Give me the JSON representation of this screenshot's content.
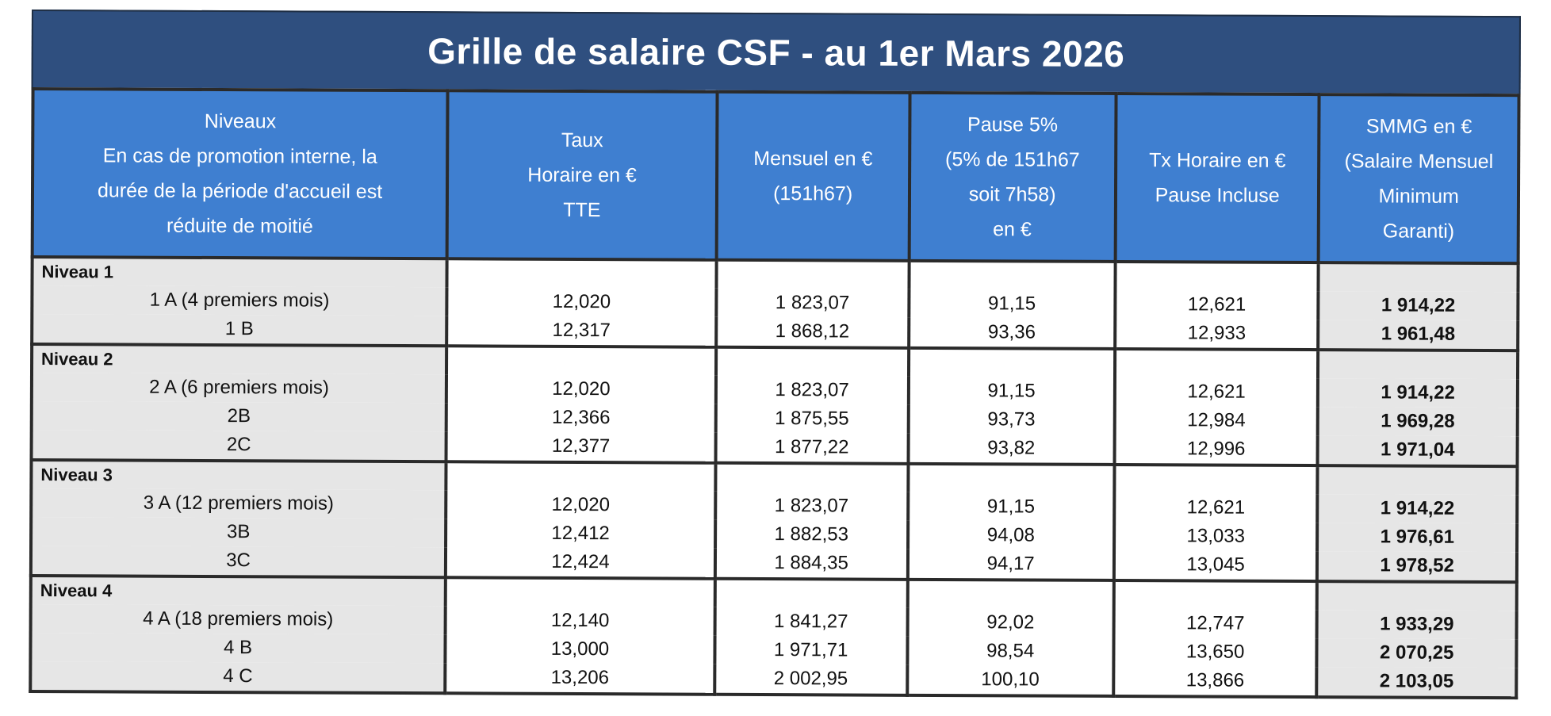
{
  "title": "Grille de salaire CSF - au 1er Mars 2026",
  "columns": [
    {
      "lines": [
        "Niveaux",
        "En cas de promotion interne, la",
        "durée de la période d'accueil est",
        "réduite de moitié"
      ]
    },
    {
      "lines": [
        "Taux",
        "Horaire en €",
        "TTE"
      ]
    },
    {
      "lines": [
        "Mensuel en €",
        "(151h67)"
      ]
    },
    {
      "lines": [
        "Pause 5%",
        "(5% de 151h67",
        "soit 7h58)",
        "en €"
      ]
    },
    {
      "lines": [
        "Tx Horaire en €",
        "Pause Incluse"
      ]
    },
    {
      "lines": [
        "SMMG en €",
        "(Salaire Mensuel",
        "Minimum",
        "Garanti)"
      ]
    }
  ],
  "groups": [
    {
      "name": "Niveau 1",
      "rows": [
        {
          "label": "1 A (4 premiers mois)",
          "taux": "12,020",
          "mensuel": "1 823,07",
          "pause": "91,15",
          "tx_pause": "12,621",
          "smmg": "1 914,22"
        },
        {
          "label": "1 B",
          "taux": "12,317",
          "mensuel": "1 868,12",
          "pause": "93,36",
          "tx_pause": "12,933",
          "smmg": "1 961,48"
        }
      ]
    },
    {
      "name": "Niveau 2",
      "rows": [
        {
          "label": "2 A (6 premiers mois)",
          "taux": "12,020",
          "mensuel": "1 823,07",
          "pause": "91,15",
          "tx_pause": "12,621",
          "smmg": "1 914,22"
        },
        {
          "label": "2B",
          "taux": "12,366",
          "mensuel": "1 875,55",
          "pause": "93,73",
          "tx_pause": "12,984",
          "smmg": "1 969,28"
        },
        {
          "label": "2C",
          "taux": "12,377",
          "mensuel": "1 877,22",
          "pause": "93,82",
          "tx_pause": "12,996",
          "smmg": "1 971,04"
        }
      ]
    },
    {
      "name": "Niveau 3",
      "rows": [
        {
          "label": "3 A (12 premiers mois)",
          "taux": "12,020",
          "mensuel": "1 823,07",
          "pause": "91,15",
          "tx_pause": "12,621",
          "smmg": "1 914,22"
        },
        {
          "label": "3B",
          "taux": "12,412",
          "mensuel": "1 882,53",
          "pause": "94,08",
          "tx_pause": "13,033",
          "smmg": "1 976,61"
        },
        {
          "label": "3C",
          "taux": "12,424",
          "mensuel": "1 884,35",
          "pause": "94,17",
          "tx_pause": "13,045",
          "smmg": "1 978,52"
        }
      ]
    },
    {
      "name": "Niveau 4",
      "rows": [
        {
          "label": "4 A (18 premiers mois)",
          "taux": "12,140",
          "mensuel": "1 841,27",
          "pause": "92,02",
          "tx_pause": "12,747",
          "smmg": "1 933,29"
        },
        {
          "label": "4 B",
          "taux": "13,000",
          "mensuel": "1 971,71",
          "pause": "98,54",
          "tx_pause": "13,650",
          "smmg": "2 070,25"
        },
        {
          "label": "4 C",
          "taux": "13,206",
          "mensuel": "2 002,95",
          "pause": "100,10",
          "tx_pause": "13,866",
          "smmg": "2 103,05"
        }
      ]
    }
  ],
  "colors": {
    "title_bg": "#2f4f7f",
    "header_bg": "#3f7fd0",
    "level_bg": "#e6e6e6"
  }
}
